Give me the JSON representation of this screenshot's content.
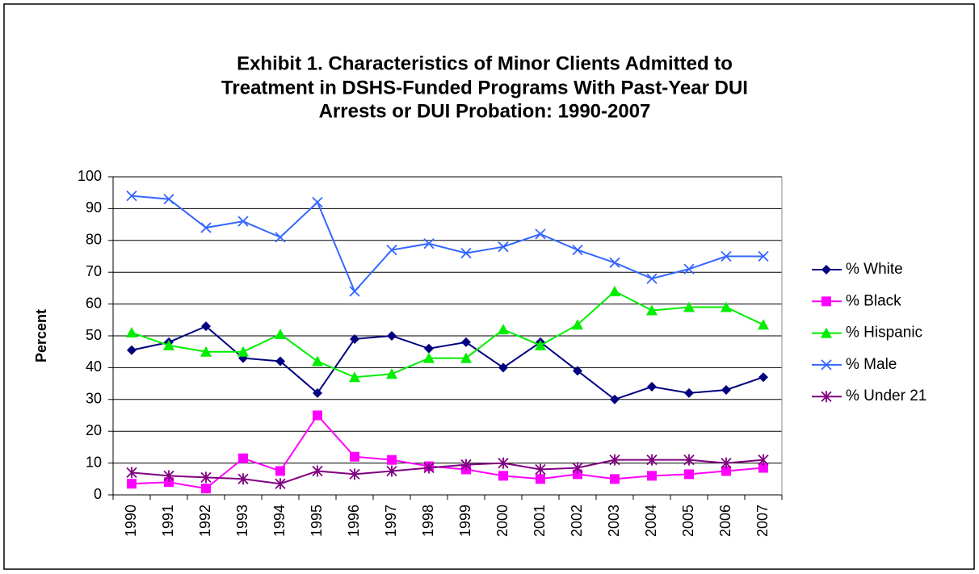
{
  "chart_data": {
    "type": "line",
    "title": [
      "Exhibit 1. Characteristics of Minor Clients Admitted to",
      "Treatment in DSHS-Funded Programs With Past-Year DUI",
      "Arrests or DUI Probation: 1990-2007"
    ],
    "ylabel": "Percent",
    "categories": [
      "1990",
      "1991",
      "1992",
      "1993",
      "1994",
      "1995",
      "1996",
      "1997",
      "1998",
      "1999",
      "2000",
      "2001",
      "2002",
      "2003",
      "2004",
      "2005",
      "2006",
      "2007"
    ],
    "series": [
      {
        "name": "% White",
        "color": "#000080",
        "marker": "diamond",
        "values": [
          45.5,
          48,
          53,
          43,
          42,
          32,
          49,
          50,
          46,
          48,
          40,
          48,
          39,
          30,
          34,
          32,
          33,
          37
        ]
      },
      {
        "name": "% Black",
        "color": "#ff00ff",
        "marker": "square",
        "values": [
          3.5,
          4,
          2,
          11.5,
          7.5,
          25,
          12,
          11,
          9,
          8,
          6,
          5,
          6.5,
          5,
          6,
          6.5,
          7.5,
          8.5
        ]
      },
      {
        "name": "% Hispanic",
        "color": "#00ee00",
        "marker": "triangle",
        "values": [
          51,
          47,
          45,
          45,
          50.5,
          42,
          37,
          38,
          43,
          43,
          52,
          47,
          53.5,
          64,
          58,
          59,
          59,
          53.5
        ]
      },
      {
        "name": "% Male",
        "color": "#3366ff",
        "marker": "x",
        "values": [
          94,
          93,
          84,
          86,
          81,
          92,
          64,
          77,
          79,
          76,
          78,
          82,
          77,
          73,
          68,
          71,
          75,
          75
        ]
      },
      {
        "name": "% Under 21",
        "color": "#800080",
        "marker": "star",
        "values": [
          7,
          6,
          5.5,
          5,
          3.5,
          7.5,
          6.5,
          7.5,
          8.5,
          9.5,
          10,
          8,
          8.5,
          11,
          11,
          11,
          10,
          11
        ]
      }
    ],
    "ylim": [
      0,
      100
    ],
    "yticks": [
      0,
      10,
      20,
      30,
      40,
      50,
      60,
      70,
      80,
      90,
      100
    ],
    "grid": true,
    "legend": "right"
  }
}
